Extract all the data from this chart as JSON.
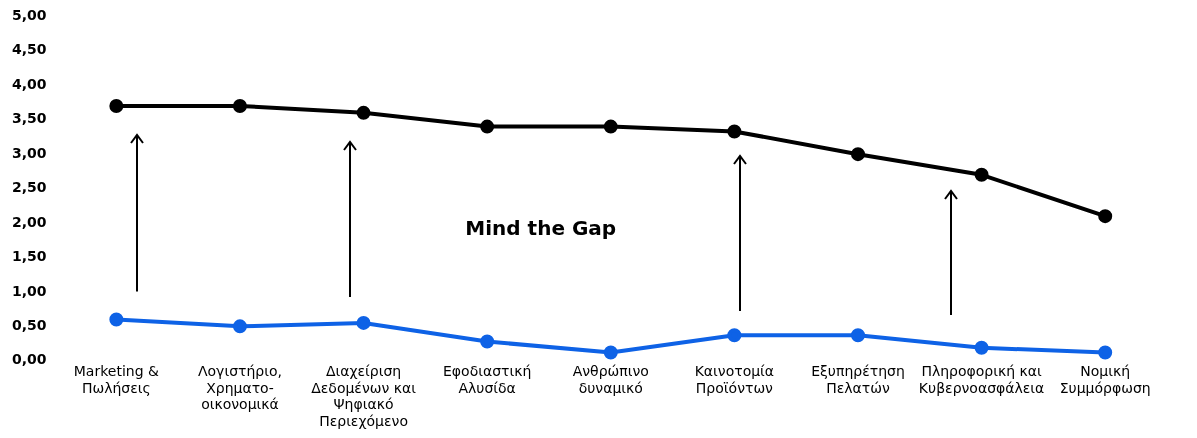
{
  "chart_data": {
    "type": "line",
    "categories": [
      "Marketing & Πωλήσεις",
      "Λογιστήριο, Χρηματο-οικονομικά",
      "Διαχείριση Δεδομένων και Ψηφιακό Περιεχόμενο",
      "Εφοδιαστική Αλυσίδα",
      "Ανθρώπινο δυναμικό",
      "Καινοτομία Προϊόντων",
      "Εξυπηρέτηση Πελατών",
      "Πληροφορική και Κυβερνοασφάλεια",
      "Νομική Συμμόρφωση"
    ],
    "series": [
      {
        "color": "#000000",
        "values": [
          3.7,
          3.7,
          3.6,
          3.4,
          3.4,
          3.33,
          3.0,
          2.7,
          2.1
        ]
      },
      {
        "color": "#0e62e6",
        "values": [
          0.6,
          0.5,
          0.55,
          0.28,
          0.12,
          0.37,
          0.37,
          0.19,
          0.12
        ]
      }
    ],
    "ylim": [
      0,
      5
    ],
    "yticks": [
      {
        "value": 0,
        "label": "0,00"
      },
      {
        "value": 0.5,
        "label": "0,50"
      },
      {
        "value": 1,
        "label": "1,00"
      },
      {
        "value": 1.5,
        "label": "1,50"
      },
      {
        "value": 2,
        "label": "2,00"
      },
      {
        "value": 2.5,
        "label": "2,50"
      },
      {
        "value": 3,
        "label": "3,00"
      },
      {
        "value": 3.5,
        "label": "3,50"
      },
      {
        "value": 4,
        "label": "4,00"
      },
      {
        "value": 4.5,
        "label": "4,50"
      },
      {
        "value": 5,
        "label": "5,00"
      }
    ],
    "grid": false,
    "legend": false,
    "marker": "circle",
    "line_style": "solid",
    "annotations": [
      "Mind the Gap"
    ]
  }
}
